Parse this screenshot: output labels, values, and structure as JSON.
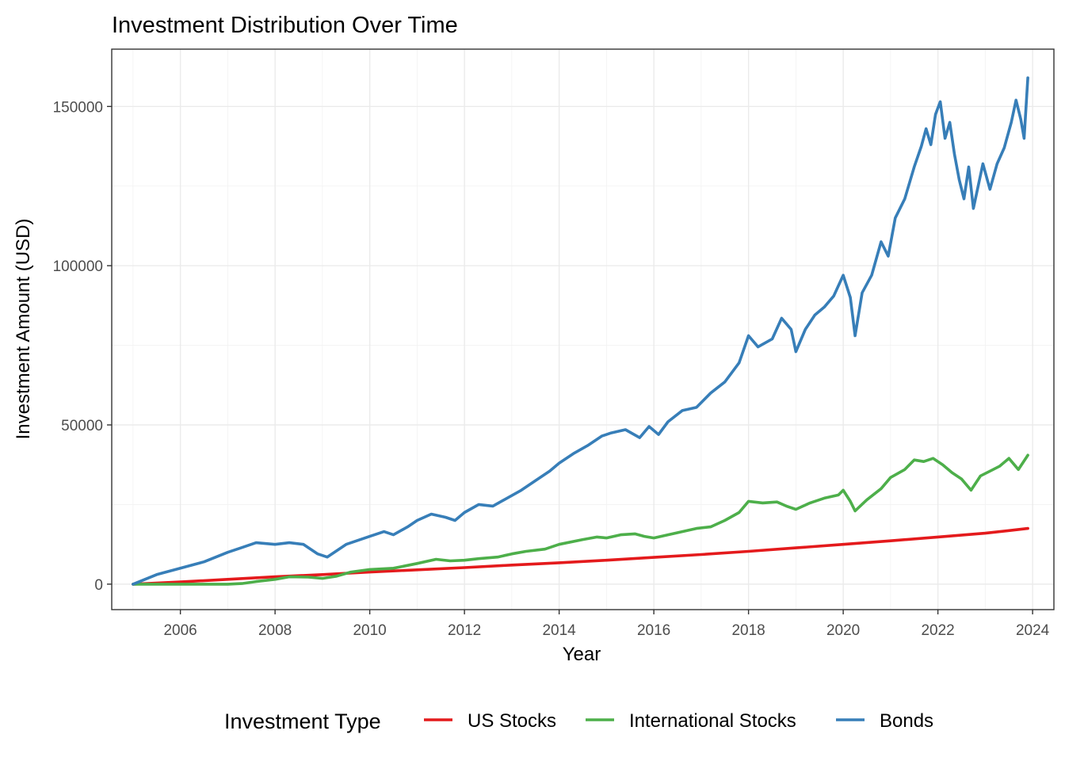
{
  "chart_data": {
    "type": "line",
    "title": "Investment Distribution Over Time",
    "xlabel": "Year",
    "ylabel": "Investment Amount (USD)",
    "xlim": [
      2004.55,
      2024.45
    ],
    "ylim": [
      -8000,
      168000
    ],
    "x_ticks": [
      2006,
      2008,
      2010,
      2012,
      2014,
      2016,
      2018,
      2020,
      2022,
      2024
    ],
    "x_tick_labels": [
      "2006",
      "2008",
      "2010",
      "2012",
      "2014",
      "2016",
      "2018",
      "2020",
      "2022",
      "2024"
    ],
    "y_ticks": [
      0,
      50000,
      100000,
      150000
    ],
    "y_tick_labels": [
      "0",
      "50000",
      "100000",
      "150000"
    ],
    "grid": true,
    "legend": {
      "title": "Investment Type",
      "position": "bottom"
    },
    "series": [
      {
        "name": "US Stocks",
        "color": "#E41A1C",
        "points": [
          [
            2005.0,
            0
          ],
          [
            2006.0,
            700
          ],
          [
            2007.0,
            1500
          ],
          [
            2008.0,
            2300
          ],
          [
            2009.0,
            3000
          ],
          [
            2010.0,
            3800
          ],
          [
            2011.0,
            4500
          ],
          [
            2012.0,
            5200
          ],
          [
            2013.0,
            6000
          ],
          [
            2014.0,
            6700
          ],
          [
            2015.0,
            7500
          ],
          [
            2016.0,
            8400
          ],
          [
            2017.0,
            9300
          ],
          [
            2018.0,
            10300
          ],
          [
            2019.0,
            11400
          ],
          [
            2020.0,
            12500
          ],
          [
            2021.0,
            13600
          ],
          [
            2022.0,
            14800
          ],
          [
            2023.0,
            16000
          ],
          [
            2023.9,
            17500
          ]
        ]
      },
      {
        "name": "International Stocks",
        "color": "#4DAF4A",
        "points": [
          [
            2005.0,
            0
          ],
          [
            2006.0,
            0
          ],
          [
            2007.0,
            0
          ],
          [
            2007.3,
            200
          ],
          [
            2007.6,
            800
          ],
          [
            2008.0,
            1500
          ],
          [
            2008.3,
            2300
          ],
          [
            2008.7,
            2200
          ],
          [
            2009.0,
            1800
          ],
          [
            2009.3,
            2500
          ],
          [
            2009.6,
            3800
          ],
          [
            2010.0,
            4600
          ],
          [
            2010.5,
            5000
          ],
          [
            2011.0,
            6500
          ],
          [
            2011.4,
            7800
          ],
          [
            2011.7,
            7300
          ],
          [
            2012.0,
            7500
          ],
          [
            2012.3,
            8000
          ],
          [
            2012.7,
            8500
          ],
          [
            2013.0,
            9500
          ],
          [
            2013.3,
            10300
          ],
          [
            2013.7,
            11000
          ],
          [
            2014.0,
            12500
          ],
          [
            2014.5,
            14000
          ],
          [
            2014.8,
            14800
          ],
          [
            2015.0,
            14500
          ],
          [
            2015.3,
            15500
          ],
          [
            2015.6,
            15800
          ],
          [
            2015.8,
            15000
          ],
          [
            2016.0,
            14500
          ],
          [
            2016.3,
            15500
          ],
          [
            2016.6,
            16500
          ],
          [
            2016.9,
            17500
          ],
          [
            2017.2,
            18000
          ],
          [
            2017.5,
            20000
          ],
          [
            2017.8,
            22500
          ],
          [
            2018.0,
            26000
          ],
          [
            2018.3,
            25500
          ],
          [
            2018.6,
            25800
          ],
          [
            2018.8,
            24500
          ],
          [
            2019.0,
            23500
          ],
          [
            2019.3,
            25500
          ],
          [
            2019.6,
            27000
          ],
          [
            2019.9,
            28000
          ],
          [
            2020.0,
            29500
          ],
          [
            2020.15,
            26000
          ],
          [
            2020.25,
            23000
          ],
          [
            2020.5,
            26500
          ],
          [
            2020.8,
            30000
          ],
          [
            2021.0,
            33500
          ],
          [
            2021.3,
            36000
          ],
          [
            2021.5,
            39000
          ],
          [
            2021.7,
            38500
          ],
          [
            2021.9,
            39500
          ],
          [
            2022.1,
            37500
          ],
          [
            2022.3,
            35000
          ],
          [
            2022.5,
            33000
          ],
          [
            2022.7,
            29500
          ],
          [
            2022.9,
            34000
          ],
          [
            2023.1,
            35500
          ],
          [
            2023.3,
            37000
          ],
          [
            2023.5,
            39500
          ],
          [
            2023.7,
            36000
          ],
          [
            2023.9,
            40500
          ]
        ]
      },
      {
        "name": "Bonds",
        "color": "#377EB8",
        "points": [
          [
            2005.0,
            0
          ],
          [
            2005.5,
            3000
          ],
          [
            2006.0,
            5000
          ],
          [
            2006.5,
            7000
          ],
          [
            2007.0,
            10000
          ],
          [
            2007.3,
            11500
          ],
          [
            2007.6,
            13000
          ],
          [
            2008.0,
            12500
          ],
          [
            2008.3,
            13000
          ],
          [
            2008.6,
            12500
          ],
          [
            2008.9,
            9500
          ],
          [
            2009.1,
            8500
          ],
          [
            2009.5,
            12500
          ],
          [
            2010.0,
            15000
          ],
          [
            2010.3,
            16500
          ],
          [
            2010.5,
            15500
          ],
          [
            2010.8,
            18000
          ],
          [
            2011.0,
            20000
          ],
          [
            2011.3,
            22000
          ],
          [
            2011.6,
            21000
          ],
          [
            2011.8,
            20000
          ],
          [
            2012.0,
            22500
          ],
          [
            2012.3,
            25000
          ],
          [
            2012.6,
            24500
          ],
          [
            2012.9,
            27000
          ],
          [
            2013.2,
            29500
          ],
          [
            2013.5,
            32500
          ],
          [
            2013.8,
            35500
          ],
          [
            2014.0,
            38000
          ],
          [
            2014.3,
            41000
          ],
          [
            2014.6,
            43500
          ],
          [
            2014.9,
            46500
          ],
          [
            2015.1,
            47500
          ],
          [
            2015.4,
            48500
          ],
          [
            2015.7,
            46000
          ],
          [
            2015.9,
            49500
          ],
          [
            2016.1,
            47000
          ],
          [
            2016.3,
            51000
          ],
          [
            2016.6,
            54500
          ],
          [
            2016.9,
            55500
          ],
          [
            2017.2,
            60000
          ],
          [
            2017.5,
            63500
          ],
          [
            2017.8,
            69500
          ],
          [
            2018.0,
            78000
          ],
          [
            2018.2,
            74500
          ],
          [
            2018.5,
            77000
          ],
          [
            2018.7,
            83500
          ],
          [
            2018.9,
            80000
          ],
          [
            2019.0,
            73000
          ],
          [
            2019.2,
            80000
          ],
          [
            2019.4,
            84500
          ],
          [
            2019.6,
            87000
          ],
          [
            2019.8,
            90500
          ],
          [
            2020.0,
            97000
          ],
          [
            2020.15,
            90000
          ],
          [
            2020.25,
            78000
          ],
          [
            2020.4,
            91500
          ],
          [
            2020.6,
            97000
          ],
          [
            2020.8,
            107500
          ],
          [
            2020.95,
            103000
          ],
          [
            2021.1,
            115000
          ],
          [
            2021.3,
            121000
          ],
          [
            2021.5,
            131000
          ],
          [
            2021.65,
            137500
          ],
          [
            2021.75,
            143000
          ],
          [
            2021.85,
            138000
          ],
          [
            2021.95,
            147500
          ],
          [
            2022.05,
            151500
          ],
          [
            2022.15,
            140000
          ],
          [
            2022.25,
            145000
          ],
          [
            2022.35,
            135000
          ],
          [
            2022.45,
            127000
          ],
          [
            2022.55,
            121000
          ],
          [
            2022.65,
            131000
          ],
          [
            2022.75,
            118000
          ],
          [
            2022.85,
            125000
          ],
          [
            2022.95,
            132000
          ],
          [
            2023.1,
            124000
          ],
          [
            2023.25,
            132000
          ],
          [
            2023.4,
            137000
          ],
          [
            2023.55,
            145000
          ],
          [
            2023.65,
            152000
          ],
          [
            2023.75,
            146000
          ],
          [
            2023.82,
            140000
          ],
          [
            2023.9,
            159000
          ]
        ]
      }
    ]
  }
}
